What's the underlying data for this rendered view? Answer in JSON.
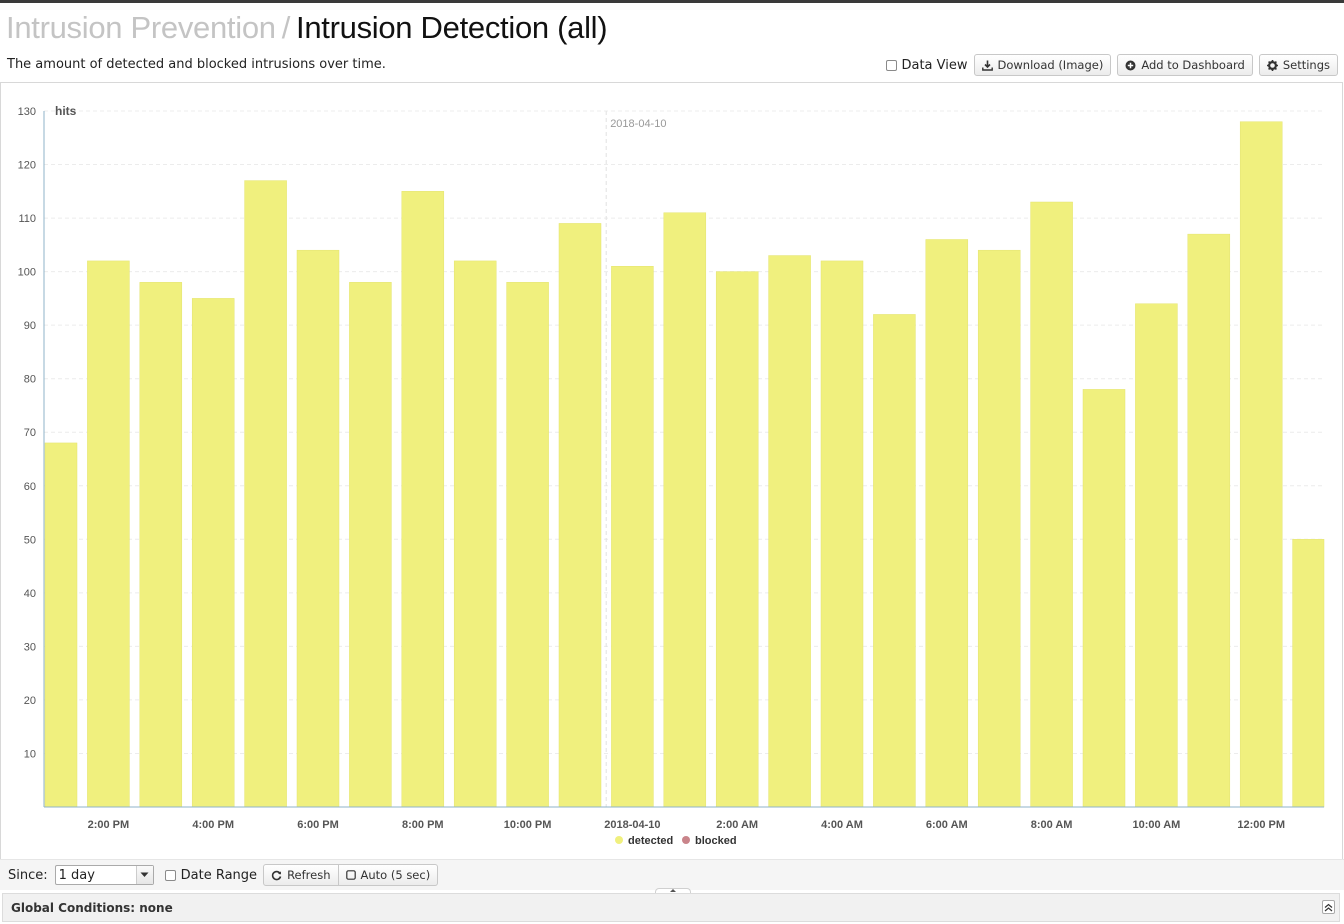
{
  "header": {
    "breadcrumb_parent": "Intrusion Prevention",
    "breadcrumb_separator": "/",
    "breadcrumb_current": "Intrusion Detection (all)",
    "description": "The amount of detected and blocked intrusions over time."
  },
  "toolbar": {
    "data_view_label": "Data View",
    "download_label": "Download (Image)",
    "dashboard_label": "Add to Dashboard",
    "settings_label": "Settings"
  },
  "controls": {
    "since_label": "Since:",
    "since_value": "1 day",
    "date_range_label": "Date Range",
    "refresh_label": "Refresh",
    "auto_label": "Auto (5 sec)"
  },
  "footer": {
    "global_conditions": "Global Conditions: none"
  },
  "colors": {
    "detected": "#f0f07e",
    "blocked": "#c9848a",
    "grid": "#ececec"
  },
  "chart_data": {
    "type": "bar",
    "ylabel": "hits",
    "ylim": [
      0,
      130
    ],
    "y_ticks": [
      10,
      20,
      30,
      40,
      50,
      60,
      70,
      80,
      90,
      100,
      110,
      120,
      130
    ],
    "x_tick_labels": [
      "2:00 PM",
      "4:00 PM",
      "6:00 PM",
      "8:00 PM",
      "10:00 PM",
      "2018-04-10",
      "2:00 AM",
      "4:00 AM",
      "6:00 AM",
      "8:00 AM",
      "10:00 AM",
      "12:00 PM"
    ],
    "marker_label": "2018-04-10",
    "grid": true,
    "legend_position": "bottom-center",
    "series": [
      {
        "name": "detected",
        "values": [
          68,
          102,
          98,
          95,
          117,
          104,
          98,
          115,
          102,
          98,
          109,
          101,
          111,
          100,
          103,
          102,
          92,
          106,
          104,
          113,
          78,
          94,
          107,
          128,
          50
        ]
      },
      {
        "name": "blocked",
        "values": [
          0,
          0,
          0,
          0,
          0,
          0,
          0,
          0,
          0,
          0,
          0,
          0,
          0,
          0,
          0,
          0,
          0,
          0,
          0,
          0,
          0,
          0,
          0,
          0,
          0
        ]
      }
    ]
  }
}
